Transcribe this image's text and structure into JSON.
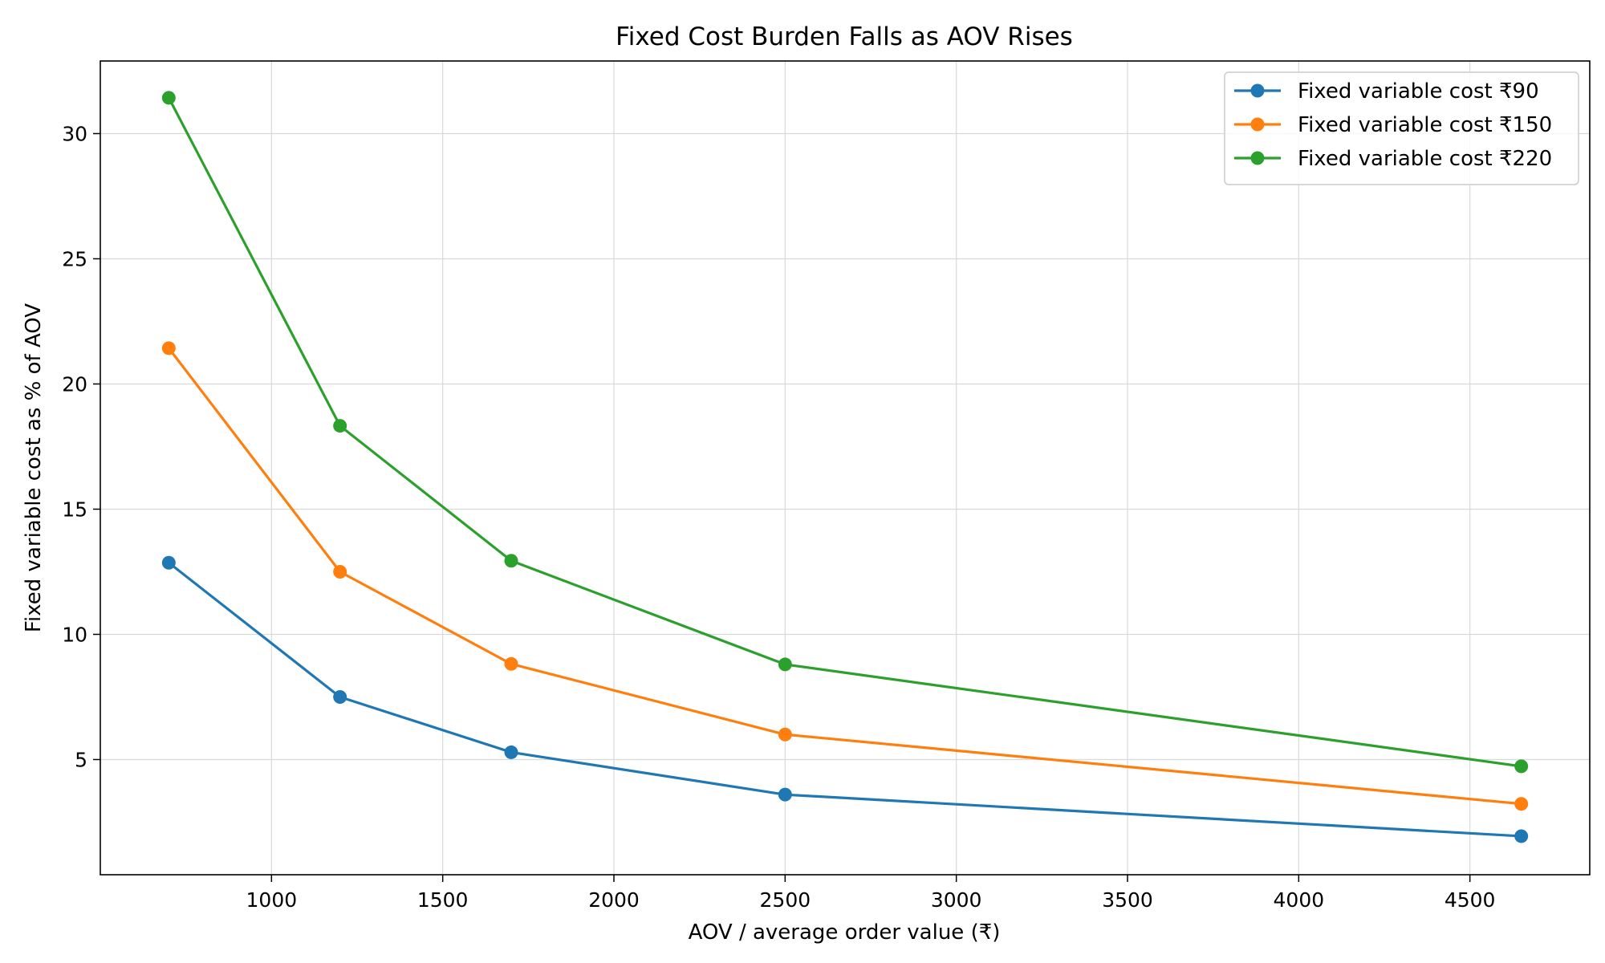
{
  "chart_data": {
    "type": "line",
    "title": "Fixed Cost Burden Falls as AOV Rises",
    "xlabel": "AOV / average order value (₹)",
    "ylabel": "Fixed variable cost as % of AOV",
    "x": [
      700,
      1200,
      1700,
      2500,
      4650
    ],
    "xlim": [
      500,
      4850
    ],
    "ylim": [
      0.4,
      32.9
    ],
    "xticks": [
      1000,
      1500,
      2000,
      2500,
      3000,
      3500,
      4000,
      4500
    ],
    "yticks": [
      5,
      10,
      15,
      20,
      25,
      30
    ],
    "grid": true,
    "legend_position": "top-right",
    "series": [
      {
        "name": "Fixed variable cost ₹90",
        "color": "#1f77b4",
        "values": [
          12.86,
          7.5,
          5.29,
          3.6,
          1.94
        ]
      },
      {
        "name": "Fixed variable cost ₹150",
        "color": "#ff7f0e",
        "values": [
          21.43,
          12.5,
          8.82,
          6.0,
          3.23
        ]
      },
      {
        "name": "Fixed variable cost ₹220",
        "color": "#2ca02c",
        "values": [
          31.43,
          18.33,
          12.94,
          8.8,
          4.73
        ]
      }
    ]
  }
}
